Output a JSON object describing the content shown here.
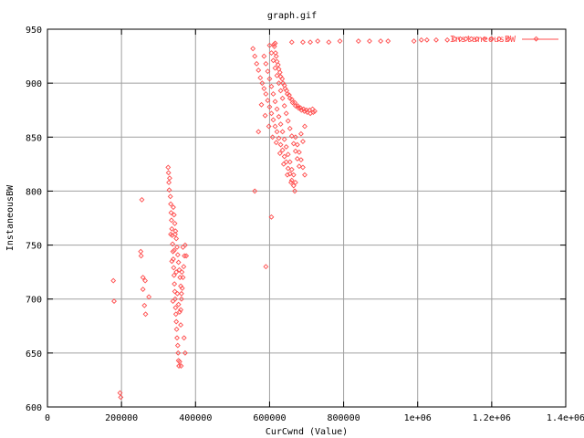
{
  "chart_data": {
    "type": "scatter",
    "title": "graph.gif",
    "xlabel": "CurCwnd (Value)",
    "ylabel": "InstaneousBW",
    "xlim": [
      0,
      1400000
    ],
    "ylim": [
      600,
      950
    ],
    "x_ticks": [
      0,
      200000,
      400000,
      600000,
      800000,
      1000000,
      1200000,
      1400000
    ],
    "x_tick_labels": [
      "0",
      "200000",
      "400000",
      "600000",
      "800000",
      "1e+06",
      "1.2e+06",
      "1.4e+06"
    ],
    "y_ticks": [
      600,
      650,
      700,
      750,
      800,
      850,
      900,
      950
    ],
    "y_tick_labels": [
      "600",
      "650",
      "700",
      "750",
      "800",
      "850",
      "900",
      "950"
    ],
    "grid": true,
    "legend_position": "top-right",
    "marker": "diamond",
    "series": [
      {
        "name": "InstaneousBW",
        "color": "#ff4d4d",
        "points": [
          [
            178000,
            717
          ],
          [
            180000,
            698
          ],
          [
            196000,
            613
          ],
          [
            198000,
            609
          ],
          [
            252000,
            744
          ],
          [
            253000,
            740
          ],
          [
            255000,
            792
          ],
          [
            258000,
            709
          ],
          [
            258000,
            720
          ],
          [
            262000,
            694
          ],
          [
            264000,
            717
          ],
          [
            265000,
            686
          ],
          [
            274000,
            702
          ],
          [
            326000,
            822
          ],
          [
            327000,
            817
          ],
          [
            328000,
            808
          ],
          [
            329000,
            801
          ],
          [
            330000,
            812
          ],
          [
            332000,
            795
          ],
          [
            333000,
            788
          ],
          [
            334000,
            780
          ],
          [
            335000,
            773
          ],
          [
            336000,
            765
          ],
          [
            337000,
            759
          ],
          [
            338000,
            751
          ],
          [
            339000,
            744
          ],
          [
            340000,
            737
          ],
          [
            341000,
            729
          ],
          [
            342000,
            722
          ],
          [
            343000,
            714
          ],
          [
            344000,
            707
          ],
          [
            345000,
            700
          ],
          [
            346000,
            692
          ],
          [
            347000,
            686
          ],
          [
            348000,
            679
          ],
          [
            349000,
            672
          ],
          [
            350000,
            664
          ],
          [
            352000,
            657
          ],
          [
            353000,
            650
          ],
          [
            354000,
            643
          ],
          [
            355000,
            638
          ],
          [
            357000,
            642
          ],
          [
            360000,
            690
          ],
          [
            362000,
            700
          ],
          [
            364000,
            710
          ],
          [
            366000,
            720
          ],
          [
            368000,
            730
          ],
          [
            370000,
            740
          ],
          [
            372000,
            750
          ],
          [
            340000,
            785
          ],
          [
            342000,
            778
          ],
          [
            344000,
            770
          ],
          [
            346000,
            763
          ],
          [
            348000,
            756
          ],
          [
            350000,
            748
          ],
          [
            352000,
            741
          ],
          [
            354000,
            734
          ],
          [
            356000,
            727
          ],
          [
            358000,
            720
          ],
          [
            360000,
            712
          ],
          [
            362000,
            705
          ],
          [
            333000,
            760
          ],
          [
            336000,
            735
          ],
          [
            339000,
            698
          ],
          [
            342000,
            745
          ],
          [
            345000,
            760
          ],
          [
            348000,
            725
          ],
          [
            351000,
            705
          ],
          [
            354000,
            695
          ],
          [
            357000,
            688
          ],
          [
            360000,
            676
          ],
          [
            363000,
            725
          ],
          [
            366000,
            748
          ],
          [
            369000,
            664
          ],
          [
            372000,
            650
          ],
          [
            375000,
            740
          ],
          [
            361000,
            638
          ],
          [
            560000,
            800
          ],
          [
            590000,
            730
          ],
          [
            605000,
            776
          ],
          [
            555000,
            932
          ],
          [
            560000,
            925
          ],
          [
            565000,
            918
          ],
          [
            570000,
            912
          ],
          [
            575000,
            905
          ],
          [
            580000,
            900
          ],
          [
            585000,
            895
          ],
          [
            590000,
            890
          ],
          [
            595000,
            884
          ],
          [
            600000,
            878
          ],
          [
            605000,
            872
          ],
          [
            610000,
            866
          ],
          [
            615000,
            860
          ],
          [
            620000,
            855
          ],
          [
            625000,
            849
          ],
          [
            630000,
            843
          ],
          [
            635000,
            838
          ],
          [
            640000,
            832
          ],
          [
            645000,
            827
          ],
          [
            650000,
            821
          ],
          [
            655000,
            816
          ],
          [
            660000,
            810
          ],
          [
            665000,
            805
          ],
          [
            585000,
            925
          ],
          [
            590000,
            918
          ],
          [
            595000,
            911
          ],
          [
            600000,
            904
          ],
          [
            605000,
            897
          ],
          [
            610000,
            890
          ],
          [
            615000,
            883
          ],
          [
            620000,
            876
          ],
          [
            625000,
            869
          ],
          [
            630000,
            862
          ],
          [
            635000,
            855
          ],
          [
            640000,
            848
          ],
          [
            645000,
            841
          ],
          [
            650000,
            834
          ],
          [
            655000,
            827
          ],
          [
            660000,
            820
          ],
          [
            600000,
            935
          ],
          [
            605000,
            928
          ],
          [
            610000,
            921
          ],
          [
            615000,
            914
          ],
          [
            620000,
            907
          ],
          [
            625000,
            900
          ],
          [
            630000,
            893
          ],
          [
            635000,
            886
          ],
          [
            640000,
            879
          ],
          [
            645000,
            872
          ],
          [
            650000,
            865
          ],
          [
            655000,
            858
          ],
          [
            660000,
            851
          ],
          [
            665000,
            844
          ],
          [
            670000,
            837
          ],
          [
            675000,
            830
          ],
          [
            680000,
            823
          ],
          [
            685000,
            853
          ],
          [
            690000,
            846
          ],
          [
            695000,
            860
          ],
          [
            670000,
            850
          ],
          [
            675000,
            843
          ],
          [
            680000,
            836
          ],
          [
            685000,
            829
          ],
          [
            690000,
            822
          ],
          [
            695000,
            815
          ],
          [
            665000,
            815
          ],
          [
            670000,
            808
          ],
          [
            570000,
            855
          ],
          [
            578000,
            880
          ],
          [
            588000,
            870
          ],
          [
            598000,
            860
          ],
          [
            608000,
            850
          ],
          [
            618000,
            845
          ],
          [
            628000,
            835
          ],
          [
            638000,
            825
          ],
          [
            648000,
            815
          ],
          [
            658000,
            808
          ],
          [
            668000,
            800
          ],
          [
            612000,
            936
          ],
          [
            616000,
            928
          ],
          [
            620000,
            920
          ],
          [
            625000,
            913
          ],
          [
            630000,
            906
          ],
          [
            636000,
            900
          ],
          [
            642000,
            895
          ],
          [
            648000,
            890
          ],
          [
            655000,
            886
          ],
          [
            662000,
            882
          ],
          [
            670000,
            879
          ],
          [
            678000,
            877
          ],
          [
            686000,
            875
          ],
          [
            694000,
            874
          ],
          [
            702000,
            873
          ],
          [
            710000,
            872
          ],
          [
            718000,
            873
          ],
          [
            722000,
            874
          ],
          [
            613000,
            934
          ],
          [
            618000,
            925
          ],
          [
            623000,
            917
          ],
          [
            628000,
            910
          ],
          [
            634000,
            904
          ],
          [
            640000,
            898
          ],
          [
            646000,
            893
          ],
          [
            653000,
            889
          ],
          [
            660000,
            885
          ],
          [
            668000,
            882
          ],
          [
            676000,
            879
          ],
          [
            684000,
            877
          ],
          [
            692000,
            876
          ],
          [
            700000,
            875
          ],
          [
            708000,
            875
          ],
          [
            716000,
            876
          ],
          [
            615000,
            937
          ],
          [
            660000,
            938
          ],
          [
            690000,
            938
          ],
          [
            710000,
            938
          ],
          [
            730000,
            939
          ],
          [
            760000,
            938
          ],
          [
            790000,
            939
          ],
          [
            840000,
            939
          ],
          [
            870000,
            939
          ],
          [
            900000,
            939
          ],
          [
            920000,
            939
          ],
          [
            990000,
            939
          ],
          [
            1010000,
            940
          ],
          [
            1025000,
            940
          ],
          [
            1050000,
            940
          ],
          [
            1080000,
            940
          ],
          [
            1100000,
            941
          ],
          [
            1115000,
            941
          ],
          [
            1130000,
            941
          ],
          [
            1145000,
            941
          ],
          [
            1160000,
            941
          ],
          [
            1180000,
            941
          ],
          [
            1200000,
            941
          ],
          [
            1220000,
            941
          ],
          [
            1245000,
            941
          ],
          [
            1320000,
            941
          ]
        ]
      }
    ]
  }
}
